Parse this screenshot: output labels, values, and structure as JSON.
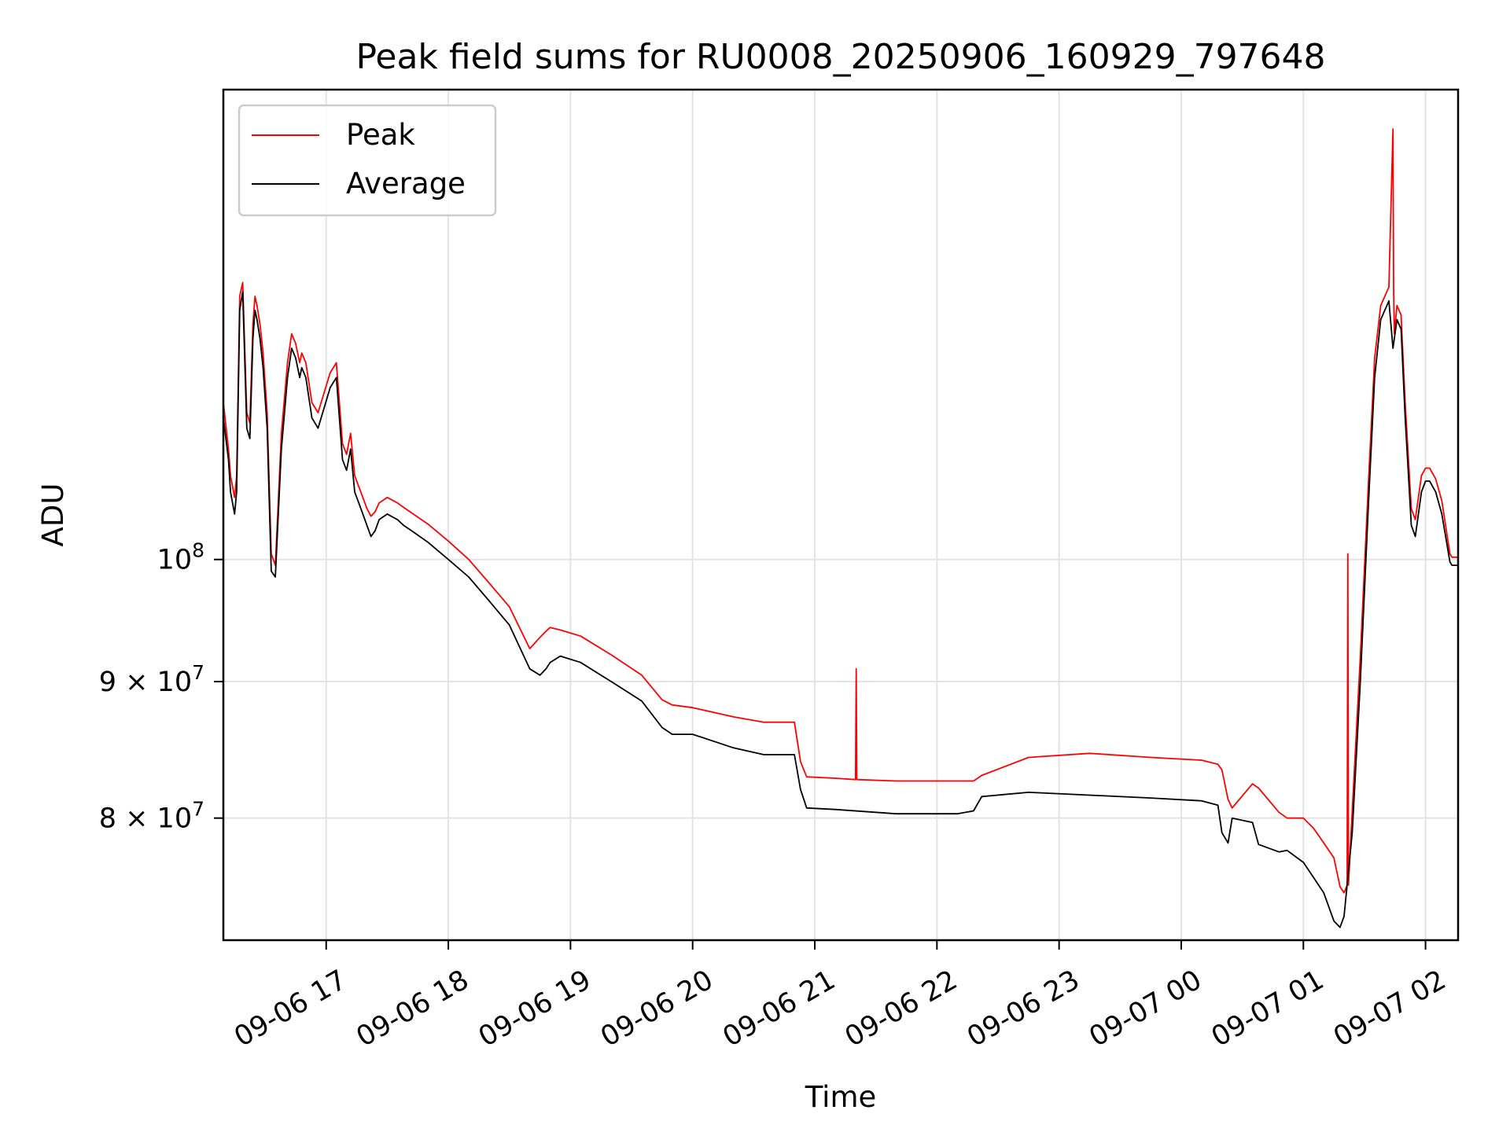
{
  "chart_data": {
    "type": "line",
    "title": "Peak field sums for RU0008_20250906_160929_797648",
    "xlabel": "Time",
    "ylabel": "ADU",
    "yscale": "log",
    "ylim": [
      72000000,
      150000000
    ],
    "xlim": [
      "2025-09-06 16:09:29",
      "2025-09-07 02:16:00"
    ],
    "grid": true,
    "legend_position": "top-left",
    "xticks": [
      {
        "t": "2025-09-06 17:00",
        "label": "09-06 17"
      },
      {
        "t": "2025-09-06 18:00",
        "label": "09-06 18"
      },
      {
        "t": "2025-09-06 19:00",
        "label": "09-06 19"
      },
      {
        "t": "2025-09-06 20:00",
        "label": "09-06 20"
      },
      {
        "t": "2025-09-06 21:00",
        "label": "09-06 21"
      },
      {
        "t": "2025-09-06 22:00",
        "label": "09-06 22"
      },
      {
        "t": "2025-09-06 23:00",
        "label": "09-06 23"
      },
      {
        "t": "2025-09-07 00:00",
        "label": "09-07 00"
      },
      {
        "t": "2025-09-07 01:00",
        "label": "09-07 01"
      },
      {
        "t": "2025-09-07 02:00",
        "label": "09-07 02"
      }
    ],
    "yticks": [
      {
        "value": 80000000,
        "mant": "8",
        "exp": "7"
      },
      {
        "value": 90000000,
        "mant": "9",
        "exp": "7"
      },
      {
        "value": 100000000,
        "mant": "",
        "exp": "8"
      }
    ],
    "series": [
      {
        "name": "Average",
        "color": "#000000",
        "x": [
          "2025-09-06 16:09:29",
          "2025-09-06 16:12:00",
          "2025-09-06 16:13:00",
          "2025-09-06 16:15:00",
          "2025-09-06 16:16:00",
          "2025-09-06 16:17:30",
          "2025-09-06 16:19:00",
          "2025-09-06 16:21:00",
          "2025-09-06 16:22:30",
          "2025-09-06 16:24:00",
          "2025-09-06 16:25:00",
          "2025-09-06 16:26:00",
          "2025-09-06 16:27:30",
          "2025-09-06 16:29:00",
          "2025-09-06 16:31:00",
          "2025-09-06 16:33:00",
          "2025-09-06 16:35:00",
          "2025-09-06 16:38:00",
          "2025-09-06 16:41:00",
          "2025-09-06 16:43:00",
          "2025-09-06 16:45:00",
          "2025-09-06 16:47:00",
          "2025-09-06 16:48:00",
          "2025-09-06 16:50:00",
          "2025-09-06 16:53:00",
          "2025-09-06 16:56:00",
          "2025-09-06 16:59:00",
          "2025-09-06 17:02:00",
          "2025-09-06 17:05:00",
          "2025-09-06 17:08:00",
          "2025-09-06 17:10:00",
          "2025-09-06 17:12:00",
          "2025-09-06 17:14:00",
          "2025-09-06 17:16:00",
          "2025-09-06 17:18:00",
          "2025-09-06 17:20:00",
          "2025-09-06 17:22:00",
          "2025-09-06 17:24:00",
          "2025-09-06 17:26:00",
          "2025-09-06 17:30:00",
          "2025-09-06 17:35:00",
          "2025-09-06 17:38:00",
          "2025-09-06 17:42:00",
          "2025-09-06 17:50:00",
          "2025-09-06 18:00:00",
          "2025-09-06 18:10:00",
          "2025-09-06 18:20:00",
          "2025-09-06 18:30:00",
          "2025-09-06 18:40:00",
          "2025-09-06 18:45:00",
          "2025-09-06 18:48:00",
          "2025-09-06 18:50:00",
          "2025-09-06 18:55:00",
          "2025-09-06 19:05:00",
          "2025-09-06 19:20:00",
          "2025-09-06 19:35:00",
          "2025-09-06 19:45:00",
          "2025-09-06 19:50:00",
          "2025-09-06 20:00:00",
          "2025-09-06 20:20:00",
          "2025-09-06 20:35:00",
          "2025-09-06 20:50:00",
          "2025-09-06 20:53:00",
          "2025-09-06 20:56:00",
          "2025-09-06 21:10:00",
          "2025-09-06 21:40:00",
          "2025-09-06 22:10:00",
          "2025-09-06 22:18:00",
          "2025-09-06 22:22:00",
          "2025-09-06 22:45:00",
          "2025-09-06 23:15:00",
          "2025-09-06 23:45:00",
          "2025-09-07 00:10:00",
          "2025-09-07 00:18:00",
          "2025-09-07 00:20:00",
          "2025-09-07 00:23:00",
          "2025-09-07 00:25:00",
          "2025-09-07 00:35:00",
          "2025-09-07 00:38:00",
          "2025-09-07 00:48:00",
          "2025-09-07 00:52:00",
          "2025-09-07 01:00:00",
          "2025-09-07 01:05:00",
          "2025-09-07 01:10:00",
          "2025-09-07 01:15:00",
          "2025-09-07 01:18:00",
          "2025-09-07 01:20:00",
          "2025-09-07 01:24:00",
          "2025-09-07 01:28:00",
          "2025-09-07 01:32:00",
          "2025-09-07 01:35:00",
          "2025-09-07 01:38:00",
          "2025-09-07 01:42:00",
          "2025-09-07 01:44:00",
          "2025-09-07 01:46:00",
          "2025-09-07 01:48:00",
          "2025-09-07 01:50:00",
          "2025-09-07 01:53:00",
          "2025-09-07 01:55:00",
          "2025-09-07 01:58:00",
          "2025-09-07 02:00:00",
          "2025-09-07 02:02:00",
          "2025-09-07 02:05:00",
          "2025-09-07 02:08:00",
          "2025-09-07 02:12:00",
          "2025-09-07 02:13:00",
          "2025-09-07 02:16:00"
        ],
        "y": [
          113000000,
          109000000,
          106000000,
          104000000,
          106000000,
          124000000,
          126000000,
          112000000,
          111000000,
          121000000,
          124000000,
          123000000,
          121000000,
          118000000,
          112000000,
          99000000,
          98500000,
          110000000,
          117000000,
          120000000,
          119000000,
          117000000,
          118000000,
          117000000,
          113000000,
          112000000,
          114000000,
          116000000,
          117000000,
          109000000,
          108000000,
          110000000,
          106000000,
          105000000,
          104000000,
          103000000,
          102000000,
          102500000,
          103500000,
          104000000,
          103500000,
          103000000,
          102500000,
          101500000,
          100000000,
          98500000,
          96500000,
          94500000,
          91000000,
          90500000,
          91000000,
          91500000,
          92000000,
          91500000,
          90000000,
          88500000,
          86500000,
          86000000,
          86000000,
          85000000,
          84500000,
          84500000,
          82000000,
          80700000,
          80600000,
          80300000,
          80300000,
          80500000,
          81500000,
          81800000,
          81600000,
          81400000,
          81200000,
          80900000,
          79000000,
          78300000,
          80000000,
          79700000,
          78200000,
          77700000,
          77800000,
          77000000,
          76000000,
          75000000,
          73200000,
          72800000,
          73500000,
          79000000,
          90000000,
          105000000,
          117000000,
          123000000,
          125000000,
          120000000,
          123000000,
          122000000,
          113000000,
          103000000,
          102000000,
          106000000,
          107000000,
          107000000,
          106000000,
          104000000,
          99800000,
          99500000,
          99500000
        ]
      },
      {
        "name": "Peak",
        "color": "#ff0000",
        "x": [
          "2025-09-06 16:09:29",
          "2025-09-06 16:12:00",
          "2025-09-06 16:13:00",
          "2025-09-06 16:15:00",
          "2025-09-06 16:16:00",
          "2025-09-06 16:17:30",
          "2025-09-06 16:19:00",
          "2025-09-06 16:21:00",
          "2025-09-06 16:22:30",
          "2025-09-06 16:24:00",
          "2025-09-06 16:25:00",
          "2025-09-06 16:26:00",
          "2025-09-06 16:27:30",
          "2025-09-06 16:29:00",
          "2025-09-06 16:31:00",
          "2025-09-06 16:33:00",
          "2025-09-06 16:35:00",
          "2025-09-06 16:38:00",
          "2025-09-06 16:41:00",
          "2025-09-06 16:43:00",
          "2025-09-06 16:45:00",
          "2025-09-06 16:47:00",
          "2025-09-06 16:48:00",
          "2025-09-06 16:50:00",
          "2025-09-06 16:53:00",
          "2025-09-06 16:56:00",
          "2025-09-06 16:59:00",
          "2025-09-06 17:02:00",
          "2025-09-06 17:05:00",
          "2025-09-06 17:08:00",
          "2025-09-06 17:10:00",
          "2025-09-06 17:12:00",
          "2025-09-06 17:14:00",
          "2025-09-06 17:16:00",
          "2025-09-06 17:18:00",
          "2025-09-06 17:20:00",
          "2025-09-06 17:22:00",
          "2025-09-06 17:24:00",
          "2025-09-06 17:26:00",
          "2025-09-06 17:30:00",
          "2025-09-06 17:35:00",
          "2025-09-06 17:38:00",
          "2025-09-06 17:42:00",
          "2025-09-06 17:50:00",
          "2025-09-06 18:00:00",
          "2025-09-06 18:10:00",
          "2025-09-06 18:20:00",
          "2025-09-06 18:30:00",
          "2025-09-06 18:40:00",
          "2025-09-06 18:45:00",
          "2025-09-06 18:48:00",
          "2025-09-06 18:50:00",
          "2025-09-06 18:55:00",
          "2025-09-06 19:05:00",
          "2025-09-06 19:20:00",
          "2025-09-06 19:35:00",
          "2025-09-06 19:45:00",
          "2025-09-06 19:50:00",
          "2025-09-06 20:00:00",
          "2025-09-06 20:20:00",
          "2025-09-06 20:35:00",
          "2025-09-06 20:50:00",
          "2025-09-06 20:53:00",
          "2025-09-06 20:56:00",
          "2025-09-06 21:10:00",
          "2025-09-06 21:20:00",
          "2025-09-06 21:20:20",
          "2025-09-06 21:20:40",
          "2025-09-06 21:40:00",
          "2025-09-06 22:10:00",
          "2025-09-06 22:18:00",
          "2025-09-06 22:22:00",
          "2025-09-06 22:45:00",
          "2025-09-06 23:15:00",
          "2025-09-06 23:45:00",
          "2025-09-07 00:10:00",
          "2025-09-07 00:18:00",
          "2025-09-07 00:20:00",
          "2025-09-07 00:23:00",
          "2025-09-07 00:25:00",
          "2025-09-07 00:35:00",
          "2025-09-07 00:38:00",
          "2025-09-07 00:48:00",
          "2025-09-07 00:52:00",
          "2025-09-07 01:00:00",
          "2025-09-07 01:05:00",
          "2025-09-07 01:10:00",
          "2025-09-07 01:15:00",
          "2025-09-07 01:18:00",
          "2025-09-07 01:20:00",
          "2025-09-07 01:21:30",
          "2025-09-07 01:21:50",
          "2025-09-07 01:22:10",
          "2025-09-07 01:24:00",
          "2025-09-07 01:28:00",
          "2025-09-07 01:32:00",
          "2025-09-07 01:35:00",
          "2025-09-07 01:38:00",
          "2025-09-07 01:42:00",
          "2025-09-07 01:44:00",
          "2025-09-07 01:44:20",
          "2025-09-07 01:44:40",
          "2025-09-07 01:46:00",
          "2025-09-07 01:48:00",
          "2025-09-07 01:50:00",
          "2025-09-07 01:53:00",
          "2025-09-07 01:55:00",
          "2025-09-07 01:58:00",
          "2025-09-07 02:00:00",
          "2025-09-07 02:02:00",
          "2025-09-07 02:05:00",
          "2025-09-07 02:08:00",
          "2025-09-07 02:12:00",
          "2025-09-07 02:13:00",
          "2025-09-07 02:16:00"
        ],
        "y": [
          114500000,
          110000000,
          107500000,
          105500000,
          107500000,
          125500000,
          127000000,
          113500000,
          112500000,
          122500000,
          125500000,
          124500000,
          122500000,
          119500000,
          113500000,
          100500000,
          99500000,
          111500000,
          118500000,
          121500000,
          120500000,
          118500000,
          119500000,
          118500000,
          114500000,
          113500000,
          115500000,
          117500000,
          118500000,
          110500000,
          109500000,
          111500000,
          107500000,
          106500000,
          105500000,
          104500000,
          103800000,
          104200000,
          105000000,
          105500000,
          105000000,
          104600000,
          104100000,
          103100000,
          101600000,
          100000000,
          98000000,
          96000000,
          92600000,
          93500000,
          94000000,
          94300000,
          94100000,
          93600000,
          92100000,
          90500000,
          88600000,
          88200000,
          88000000,
          87300000,
          86900000,
          86900000,
          84000000,
          82900000,
          82800000,
          82700000,
          91000000,
          82700000,
          82600000,
          82600000,
          82600000,
          83000000,
          84300000,
          84600000,
          84300000,
          84100000,
          83800000,
          83400000,
          81300000,
          80700000,
          82400000,
          82100000,
          80400000,
          80000000,
          80000000,
          79300000,
          78300000,
          77300000,
          75400000,
          75000000,
          75500000,
          100500000,
          75500000,
          80500000,
          92000000,
          107000000,
          119000000,
          124500000,
          126500000,
          145000000,
          126500000,
          121500000,
          124500000,
          123500000,
          114500000,
          104500000,
          103500000,
          107500000,
          108200000,
          108200000,
          107200000,
          105200000,
          100500000,
          100200000,
          100200000
        ]
      }
    ]
  }
}
